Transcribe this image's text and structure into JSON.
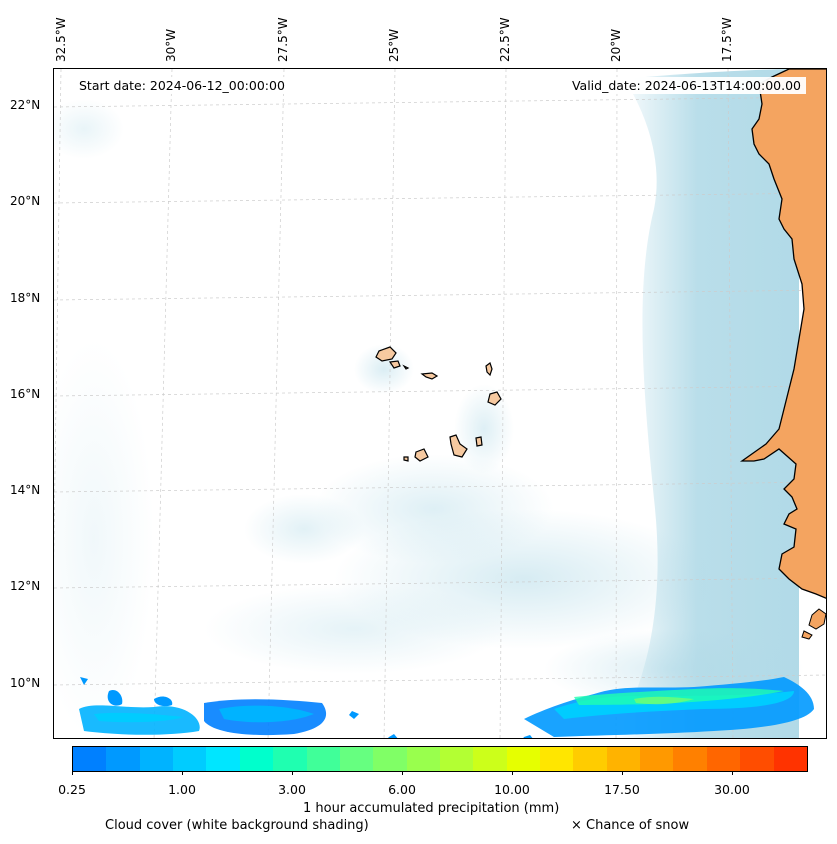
{
  "map": {
    "start_date": "Start date: 2024-06-12_00:00:00",
    "valid_date": "Valid_date: 2024-06-13T14:00:00.00",
    "lon_labels": [
      "32.5°W",
      "30°W",
      "27.5°W",
      "25°W",
      "22.5°W",
      "20°W",
      "17.5°W"
    ],
    "lat_labels": [
      "22°N",
      "20°N",
      "18°N",
      "16°N",
      "14°N",
      "12°N",
      "10°N"
    ],
    "land_color": "#f4a460",
    "island_color": "#f6c9a0",
    "cloud_color": "#add8e6",
    "grid_color": "#cccccc"
  },
  "colorbar": {
    "colors": [
      "#0080ff",
      "#0099ff",
      "#00b3ff",
      "#00ccff",
      "#00e6ff",
      "#00ffcc",
      "#1fffb0",
      "#40ff99",
      "#66ff80",
      "#80ff66",
      "#99ff4d",
      "#b3ff33",
      "#ccff1a",
      "#e6ff00",
      "#ffe600",
      "#ffcc00",
      "#ffb300",
      "#ff9900",
      "#ff8000",
      "#ff6600",
      "#ff4d00",
      "#ff3300"
    ],
    "tick_labels": [
      "0.25",
      "1.00",
      "3.00",
      "6.00",
      "10.00",
      "17.50",
      "30.00"
    ],
    "label": "1 hour accumulated precipitation (mm)"
  },
  "legend": {
    "cloud_text": "Cloud cover (white background shading)",
    "snow_text": "× Chance of snow"
  }
}
